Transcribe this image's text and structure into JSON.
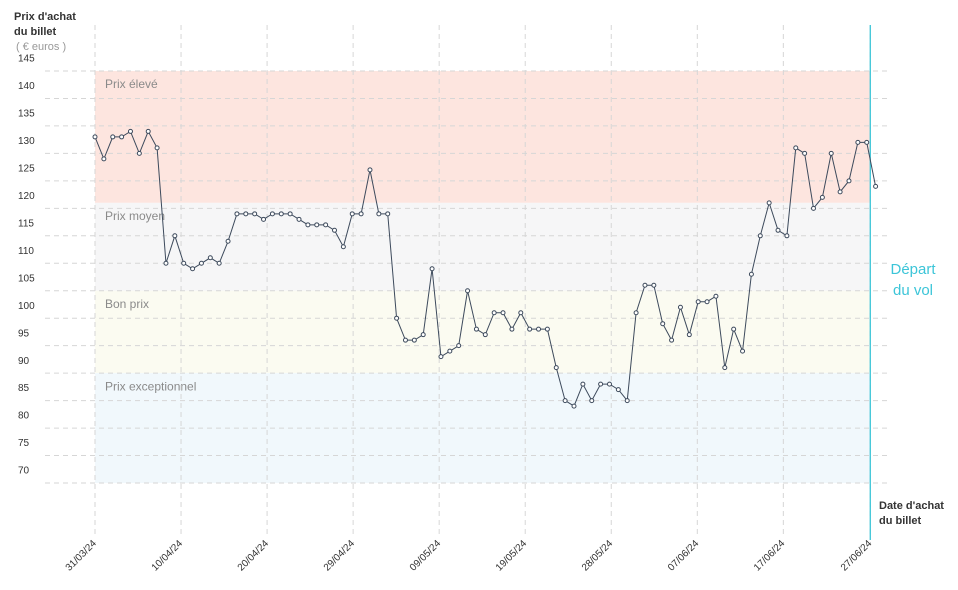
{
  "chart_data": {
    "type": "line",
    "y_axis_title": [
      "Prix d'achat",
      "du billet"
    ],
    "y_axis_unit": "( € euros )",
    "x_axis_title": [
      "Date d'achat",
      "du billet"
    ],
    "ylim": [
      70,
      145
    ],
    "yticks": [
      70,
      75,
      80,
      85,
      90,
      95,
      100,
      105,
      110,
      115,
      120,
      125,
      130,
      135,
      140,
      145
    ],
    "xlim": [
      0,
      88
    ],
    "xticks": [
      {
        "value": 0,
        "label": "31/03/24"
      },
      {
        "value": 9.7,
        "label": "10/04/24"
      },
      {
        "value": 19.4,
        "label": "20/04/24"
      },
      {
        "value": 29.1,
        "label": "29/04/24"
      },
      {
        "value": 38.8,
        "label": "09/05/24"
      },
      {
        "value": 48.5,
        "label": "19/05/24"
      },
      {
        "value": 58.2,
        "label": "28/05/24"
      },
      {
        "value": 67.9,
        "label": "07/06/24"
      },
      {
        "value": 77.6,
        "label": "17/06/24"
      },
      {
        "value": 87.4,
        "label": "27/06/24"
      }
    ],
    "grid": true,
    "bands": [
      {
        "label": "Prix élevé",
        "from": 121,
        "to": 145,
        "color": "#fde5df"
      },
      {
        "label": "Prix moyen",
        "from": 105,
        "to": 121,
        "color": "#f6f6f7"
      },
      {
        "label": "Bon prix",
        "from": 90,
        "to": 105,
        "color": "#fbfbf1"
      },
      {
        "label": "Prix exceptionnel",
        "from": 70,
        "to": 90,
        "color": "#f1f8fc"
      }
    ],
    "departure": {
      "label": [
        "Départ",
        "du vol"
      ],
      "x": 87.4,
      "color": "#3cc5d8"
    },
    "series": [
      {
        "color": "#3d4a5c",
        "values": [
          133,
          129,
          133,
          133,
          134,
          130,
          134,
          131,
          110,
          115,
          110,
          109,
          110,
          111,
          110,
          114,
          119,
          119,
          119,
          118,
          119,
          119,
          119,
          118,
          117,
          117,
          117,
          116,
          113,
          119,
          119,
          127,
          119,
          119,
          100,
          96,
          96,
          97,
          109,
          93,
          94,
          95,
          105,
          98,
          97,
          101,
          101,
          98,
          101,
          98,
          98,
          98,
          91,
          85,
          84,
          88,
          85,
          88,
          88,
          87,
          85,
          101,
          106,
          106,
          99,
          96,
          102,
          97,
          103,
          103,
          104,
          91,
          98,
          94,
          108,
          115,
          121,
          116,
          115,
          131,
          130,
          120,
          122,
          130,
          123,
          125,
          132,
          132,
          124
        ]
      }
    ]
  }
}
